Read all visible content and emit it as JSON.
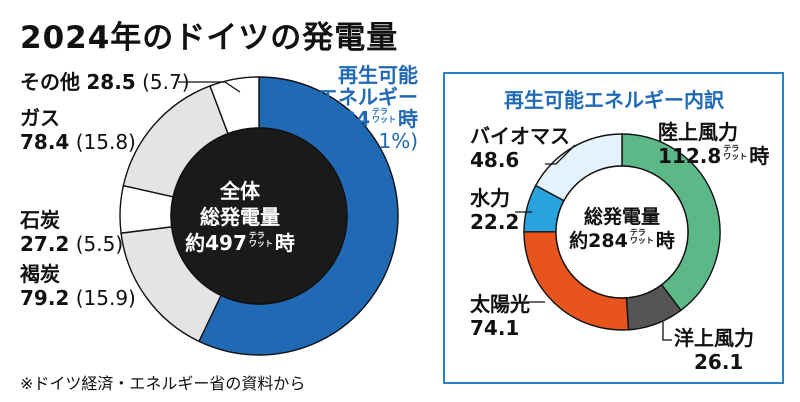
{
  "title": "2024年のドイツの発電量",
  "note": "※ドイツ経済・エネルギー省の資料から",
  "unit_glyphs": [
    "テラ",
    "ワット"
  ],
  "colors": {
    "renewable": "#1f69b5",
    "others": "#e4e4e4",
    "white": "#ffffff",
    "panel_border": "#2b7fc4"
  },
  "chart_data": [
    {
      "type": "pie",
      "variant": "donut",
      "slices": [
        {
          "label": "再生可能エネルギー",
          "value": 284,
          "percent": 57.1,
          "color": "#1f69b5"
        },
        {
          "label": "褐炭",
          "value": 79.2,
          "percent": 15.9,
          "color": "#e4e4e4"
        },
        {
          "label": "石炭",
          "value": 27.2,
          "percent": 5.5,
          "color": "#ffffff"
        },
        {
          "label": "ガス",
          "value": 78.4,
          "percent": 15.8,
          "color": "#e4e4e4"
        },
        {
          "label": "その他",
          "value": 28.5,
          "percent": 5.7,
          "color": "#ffffff"
        }
      ],
      "center": {
        "line1": "全体",
        "line2": "総発電量",
        "prefix": "約",
        "value": "497",
        "suffix": "時"
      },
      "renewable_label": {
        "line1": "再生可能",
        "line2": "エネルギー",
        "value": "284",
        "suffix": "時",
        "percent": "(57.1%)"
      },
      "label_values": {
        "other": {
          "name": "その他",
          "value": "28.5",
          "percent": "(5.7)"
        },
        "gas": {
          "name": "ガス",
          "value": "78.4",
          "percent": "(15.8)"
        },
        "coal": {
          "name": "石炭",
          "value": "27.2",
          "percent": "(5.5)"
        },
        "lignite": {
          "name": "褐炭",
          "value": "79.2",
          "percent": "(15.9)"
        }
      }
    },
    {
      "type": "pie",
      "variant": "donut",
      "title": "再生可能エネルギー内訳",
      "slices": [
        {
          "label": "陸上風力",
          "value": 112.8,
          "color": "#5cb887"
        },
        {
          "label": "洋上風力",
          "value": 26.1,
          "color": "#555555"
        },
        {
          "label": "太陽光",
          "value": 74.1,
          "color": "#e8541e"
        },
        {
          "label": "水力",
          "value": 22.2,
          "color": "#29a3db"
        },
        {
          "label": "バイオマス",
          "value": 48.6,
          "color": "#e3f2fb"
        }
      ],
      "center": {
        "line1": "総発電量",
        "prefix": "約",
        "value": "284",
        "suffix": "時"
      },
      "label_values": {
        "onshore": {
          "name": "陸上風力",
          "value": "112.8",
          "suffix": "時"
        },
        "offshore": {
          "name": "洋上風力",
          "value": "26.1"
        },
        "solar": {
          "name": "太陽光",
          "value": "74.1"
        },
        "hydro": {
          "name": "水力",
          "value": "22.2"
        },
        "biomass": {
          "name": "バイオマス",
          "value": "48.6"
        }
      }
    }
  ]
}
